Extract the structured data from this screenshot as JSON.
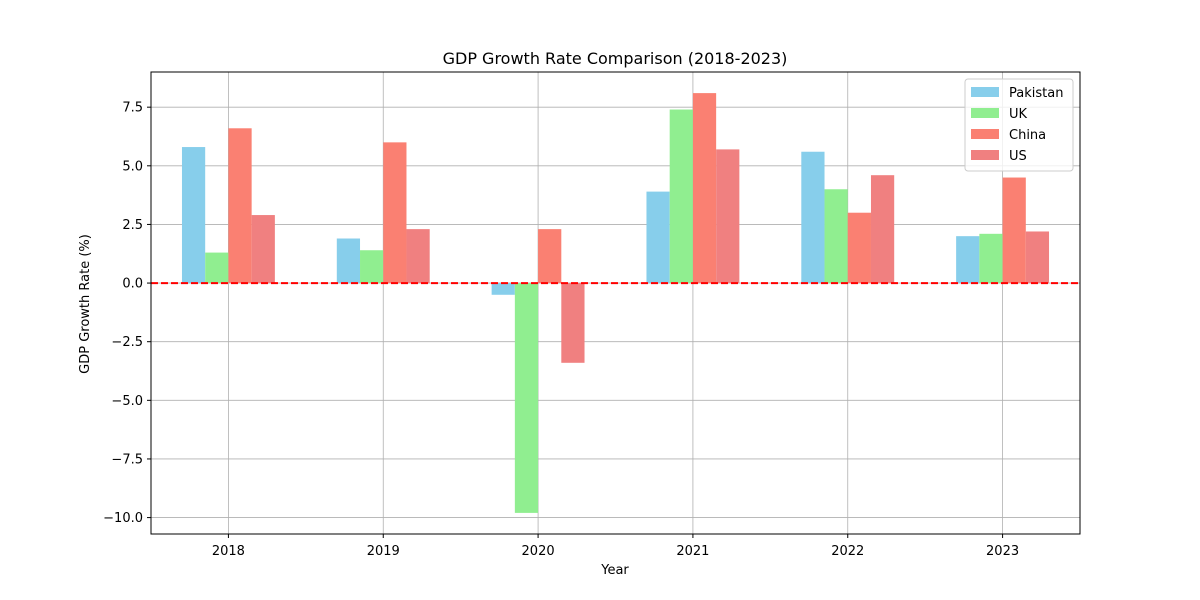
{
  "chart_data": {
    "type": "bar",
    "title": "GDP Growth Rate Comparison (2018-2023)",
    "xlabel": "Year",
    "ylabel": "GDP Growth Rate (%)",
    "categories": [
      "2018",
      "2019",
      "2020",
      "2021",
      "2022",
      "2023"
    ],
    "ylim": [
      -10.7,
      9.0
    ],
    "yticks": [
      -10.0,
      -7.5,
      -5.0,
      -2.5,
      0.0,
      2.5,
      5.0,
      7.5
    ],
    "ytick_labels": [
      "−10.0",
      "−7.5",
      "−5.0",
      "−2.5",
      "0.0",
      "2.5",
      "5.0",
      "7.5"
    ],
    "grid": true,
    "legend_position": "top-right",
    "reference_line": {
      "y": 0,
      "color": "#ff0000",
      "style": "dashed"
    },
    "series": [
      {
        "name": "Pakistan",
        "color": "#87ceeb",
        "values": [
          5.8,
          1.9,
          -0.5,
          3.9,
          5.6,
          2.0
        ]
      },
      {
        "name": "UK",
        "color": "#90ee90",
        "values": [
          1.3,
          1.4,
          -9.8,
          7.4,
          4.0,
          2.1
        ]
      },
      {
        "name": "China",
        "color": "#fa8072",
        "values": [
          6.6,
          6.0,
          2.3,
          8.1,
          3.0,
          4.5
        ]
      },
      {
        "name": "US",
        "color": "#f08080",
        "values": [
          2.9,
          2.3,
          -3.4,
          5.7,
          4.6,
          2.2
        ]
      }
    ]
  }
}
